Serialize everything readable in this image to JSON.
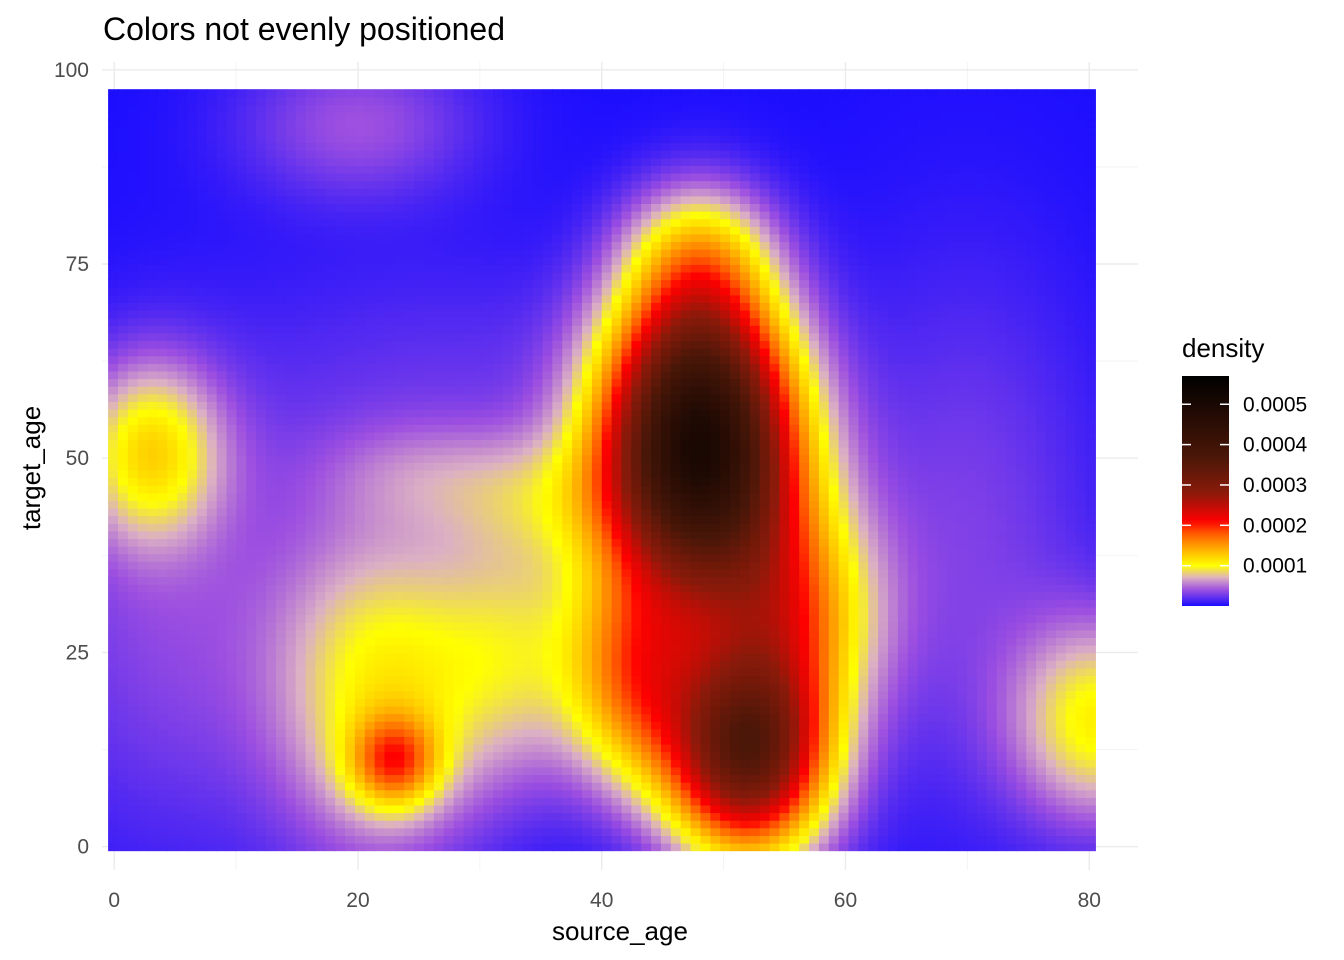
{
  "chart_data": {
    "type": "heatmap",
    "title": "Colors not evenly positioned",
    "xlabel": "source_age",
    "ylabel": "target_age",
    "xlim": [
      -1,
      84
    ],
    "ylim": [
      -3,
      101
    ],
    "x_extent": [
      -0.5,
      80.5
    ],
    "y_extent": [
      -0.5,
      97.5
    ],
    "x_ticks": [
      0,
      20,
      40,
      60,
      80
    ],
    "x_tick_labels": [
      "0",
      "20",
      "40",
      "60",
      "80"
    ],
    "y_ticks": [
      0,
      25,
      50,
      75,
      100
    ],
    "y_tick_labels": [
      "0",
      "25",
      "50",
      "75",
      "100"
    ],
    "grid": true,
    "legend": {
      "title": "density",
      "placement": "right",
      "range": [
        1e-07,
        0.00057
      ],
      "breaks": [
        0.0001,
        0.0002,
        0.0003,
        0.0004,
        0.0005
      ],
      "break_labels": [
        "0.0001",
        "0.0002",
        "0.0003",
        "0.0004",
        "0.0005"
      ]
    },
    "color_scale": [
      {
        "value": 0.0,
        "color": "#1a0dff"
      },
      {
        "value": 4e-05,
        "color": "#9d4fe0"
      },
      {
        "value": 7e-05,
        "color": "#dcb0c4"
      },
      {
        "value": 0.0001,
        "color": "#ffff00"
      },
      {
        "value": 0.00014,
        "color": "#ffb000"
      },
      {
        "value": 0.00018,
        "color": "#ff5a00"
      },
      {
        "value": 0.00021,
        "color": "#ff0000"
      },
      {
        "value": 0.00028,
        "color": "#8b1a0a"
      },
      {
        "value": 0.00037,
        "color": "#4a1708"
      },
      {
        "value": 0.00057,
        "color": "#000000"
      }
    ],
    "density_components": [
      {
        "x": 48,
        "y": 50,
        "sx": 5.5,
        "sy": 12,
        "w": 0.00045
      },
      {
        "x": 48,
        "y": 66,
        "sx": 4.5,
        "sy": 10,
        "w": 0.00012
      },
      {
        "x": 48,
        "y": 77,
        "sx": 4,
        "sy": 6,
        "w": 6e-05
      },
      {
        "x": 52,
        "y": 12,
        "sx": 4.5,
        "sy": 9,
        "w": 0.00033
      },
      {
        "x": 55,
        "y": 30,
        "sx": 5,
        "sy": 10,
        "w": 0.00015
      },
      {
        "x": 43,
        "y": 22,
        "sx": 4,
        "sy": 10,
        "w": 0.00015
      },
      {
        "x": 23,
        "y": 11,
        "sx": 2.5,
        "sy": 4,
        "w": 0.00012
      },
      {
        "x": 22,
        "y": 20,
        "sx": 6,
        "sy": 15,
        "w": 0.0001
      },
      {
        "x": 33,
        "y": 25,
        "sx": 5,
        "sy": 12,
        "w": 7e-05
      },
      {
        "x": 35,
        "y": 45,
        "sx": 6,
        "sy": 6,
        "w": 4e-05
      },
      {
        "x": 25,
        "y": 48,
        "sx": 6,
        "sy": 5,
        "w": 2.5e-05
      },
      {
        "x": 3,
        "y": 51,
        "sx": 4,
        "sy": 8,
        "w": 0.0001
      },
      {
        "x": 81,
        "y": 16,
        "sx": 5,
        "sy": 9,
        "w": 0.0001
      },
      {
        "x": 20,
        "y": 93,
        "sx": 7,
        "sy": 7,
        "w": 4e-05
      },
      {
        "x": 5,
        "y": 30,
        "sx": 9,
        "sy": 22,
        "w": 3.5e-05
      },
      {
        "x": 70,
        "y": 40,
        "sx": 8,
        "sy": 25,
        "w": 3e-05
      },
      {
        "x": 28,
        "y": 60,
        "sx": 12,
        "sy": 12,
        "w": 2e-05
      }
    ]
  }
}
